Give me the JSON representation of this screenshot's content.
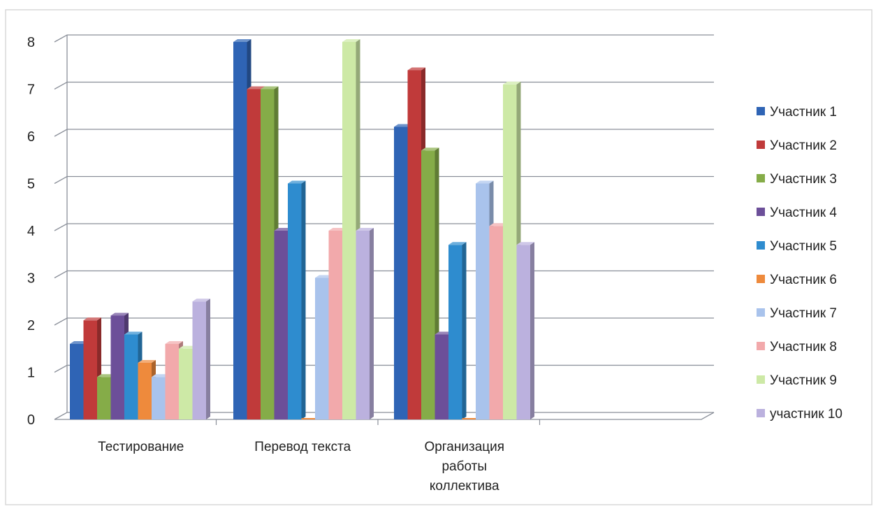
{
  "chart_data": {
    "type": "bar",
    "title": "",
    "xlabel": "",
    "ylabel": "",
    "ylim": [
      0,
      8
    ],
    "y_ticks": [
      0,
      1,
      2,
      3,
      4,
      5,
      6,
      7,
      8
    ],
    "grid": true,
    "legend_position": "right",
    "three_d": true,
    "categories": [
      [
        "Тестирование"
      ],
      [
        "Перевод текста"
      ],
      [
        "Организация",
        "работы",
        "коллектива"
      ]
    ],
    "series": [
      {
        "name": "Участник 1",
        "color": "#2f64b5",
        "values": [
          1.6,
          8.0,
          6.2
        ]
      },
      {
        "name": "Участник 2",
        "color": "#c03a3a",
        "values": [
          2.1,
          7.0,
          7.4
        ]
      },
      {
        "name": "Участник 3",
        "color": "#85ac48",
        "values": [
          0.9,
          7.0,
          5.7
        ]
      },
      {
        "name": "Участник 4",
        "color": "#6c4f99",
        "values": [
          2.2,
          4.0,
          1.8
        ]
      },
      {
        "name": "Участник 5",
        "color": "#2e8ccf",
        "values": [
          1.8,
          5.0,
          3.7
        ]
      },
      {
        "name": "Участник 6",
        "color": "#ee8a3c",
        "values": [
          1.2,
          0.0,
          0.0
        ]
      },
      {
        "name": "Участник 7",
        "color": "#a9c3ec",
        "values": [
          0.9,
          3.0,
          5.0
        ]
      },
      {
        "name": "Участник 8",
        "color": "#f2a9ab",
        "values": [
          1.6,
          4.0,
          4.1
        ]
      },
      {
        "name": "Участник 9",
        "color": "#cde9a6",
        "values": [
          1.5,
          8.0,
          7.1
        ]
      },
      {
        "name": "участник 10",
        "color": "#bbb1de",
        "values": [
          2.5,
          4.0,
          3.7
        ]
      }
    ]
  }
}
